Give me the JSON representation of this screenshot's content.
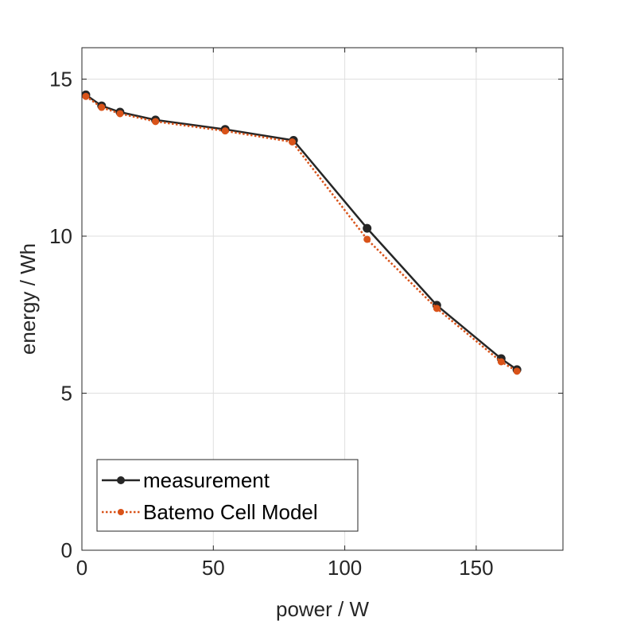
{
  "chart_data": {
    "type": "line",
    "xlabel": "power / W",
    "ylabel": "energy / Wh",
    "xlim": [
      0,
      183
    ],
    "ylim": [
      0,
      16
    ],
    "xticks": [
      0,
      50,
      100,
      150
    ],
    "yticks": [
      0,
      5,
      10,
      15
    ],
    "grid": true,
    "legend_position": "bottom-left",
    "series": [
      {
        "name": "measurement",
        "color": "#262626",
        "line_style": "solid",
        "marker": "circle",
        "x": [
          1.5,
          7.5,
          14.5,
          28,
          54.5,
          80.5,
          108.5,
          135,
          159.5,
          165.5
        ],
        "y": [
          14.5,
          14.15,
          13.95,
          13.7,
          13.4,
          13.05,
          10.25,
          7.8,
          6.1,
          5.75
        ]
      },
      {
        "name": "Batemo Cell Model",
        "color": "#D95319",
        "line_style": "dotted",
        "marker": "circle",
        "x": [
          1.5,
          7.5,
          14.5,
          28,
          54.5,
          80,
          108.5,
          135,
          159.5,
          165.5
        ],
        "y": [
          14.45,
          14.1,
          13.9,
          13.65,
          13.35,
          13.0,
          9.9,
          7.7,
          6.0,
          5.7
        ]
      }
    ]
  }
}
